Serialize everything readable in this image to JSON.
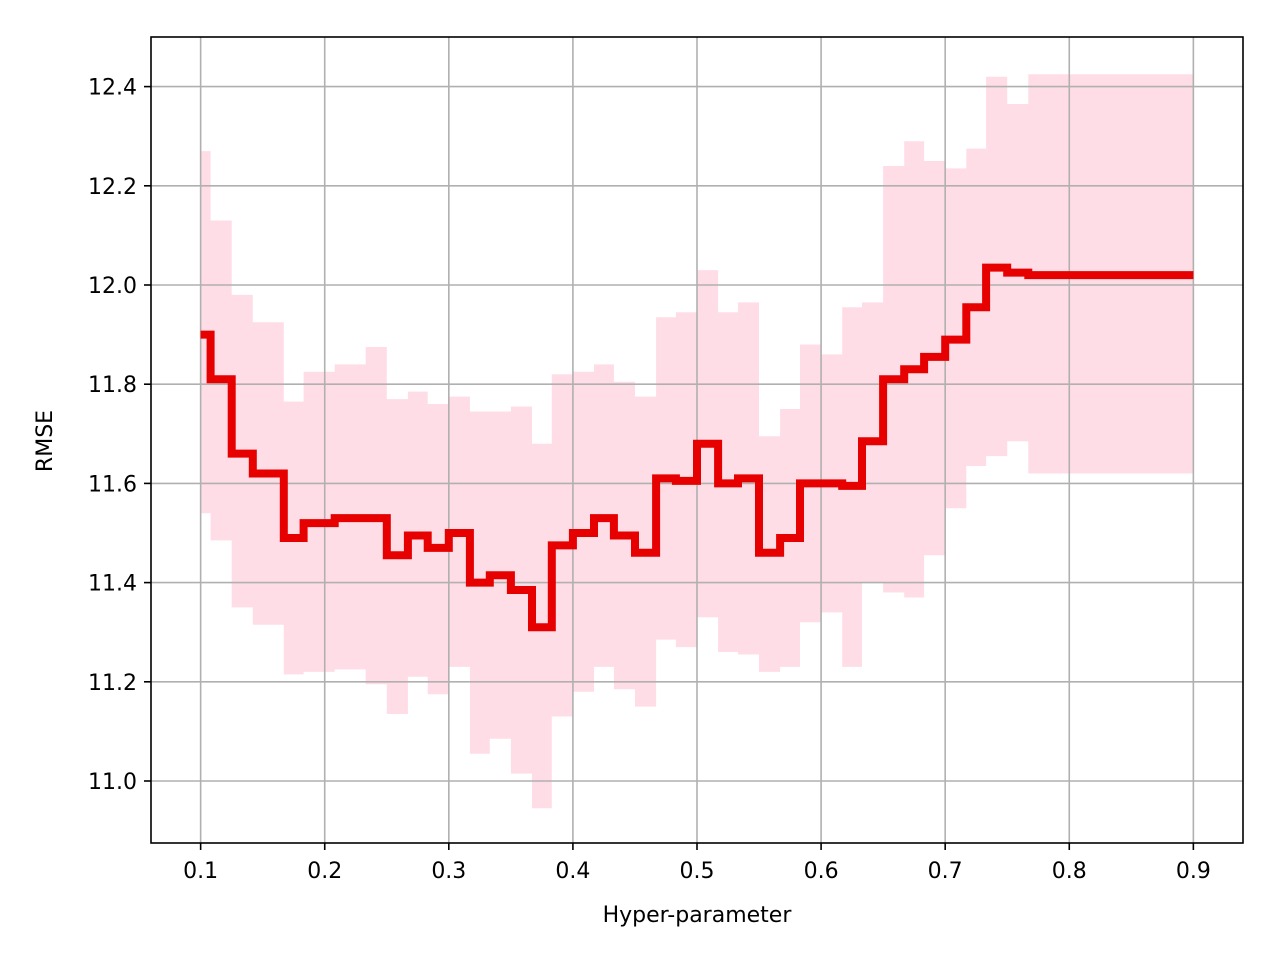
{
  "chart_data": {
    "type": "line",
    "title": "",
    "xlabel": "Hyper-parameter",
    "ylabel": "RMSE",
    "xlim": [
      0.06,
      0.94
    ],
    "ylim": [
      10.875,
      12.5
    ],
    "grid": true,
    "x_ticks": [
      0.1,
      0.2,
      0.3,
      0.4,
      0.5,
      0.6,
      0.7,
      0.8,
      0.9
    ],
    "x_tick_labels": [
      "0.1",
      "0.2",
      "0.3",
      "0.4",
      "0.5",
      "0.6",
      "0.7",
      "0.8",
      "0.9"
    ],
    "y_ticks": [
      11.0,
      11.2,
      11.4,
      11.6,
      11.8,
      12.0,
      12.2,
      12.4
    ],
    "y_tick_labels": [
      "11.0",
      "11.2",
      "11.4",
      "11.6",
      "11.8",
      "12.0",
      "12.2",
      "12.4"
    ],
    "step": true,
    "colors": {
      "line": "#e60000",
      "band": "#ffdde6",
      "grid": "#b0b0b0"
    },
    "series": [
      {
        "x": [
          0.1,
          0.108,
          0.125,
          0.142,
          0.167,
          0.183,
          0.208,
          0.233,
          0.25,
          0.267,
          0.283,
          0.3,
          0.317,
          0.333,
          0.35,
          0.367,
          0.383,
          0.4,
          0.417,
          0.433,
          0.45,
          0.467,
          0.483,
          0.5,
          0.517,
          0.533,
          0.55,
          0.567,
          0.583,
          0.6,
          0.617,
          0.633,
          0.65,
          0.667,
          0.683,
          0.7,
          0.717,
          0.733,
          0.75,
          0.767,
          0.783,
          0.8,
          0.817,
          0.833,
          0.85,
          0.867,
          0.883,
          0.9
        ],
        "y": [
          11.9,
          11.81,
          11.66,
          11.62,
          11.49,
          11.52,
          11.53,
          11.53,
          11.455,
          11.495,
          11.47,
          11.5,
          11.4,
          11.415,
          11.385,
          11.31,
          11.475,
          11.5,
          11.53,
          11.495,
          11.46,
          11.61,
          11.605,
          11.68,
          11.6,
          11.61,
          11.46,
          11.49,
          11.6,
          11.6,
          11.595,
          11.685,
          11.81,
          11.83,
          11.855,
          11.89,
          11.955,
          12.035,
          12.025,
          12.02,
          12.02,
          12.02,
          12.02,
          12.02,
          12.02,
          12.02,
          12.02,
          12.02
        ],
        "upper": [
          12.27,
          12.13,
          11.98,
          11.925,
          11.765,
          11.825,
          11.84,
          11.875,
          11.77,
          11.785,
          11.76,
          11.775,
          11.745,
          11.745,
          11.755,
          11.68,
          11.82,
          11.825,
          11.84,
          11.805,
          11.775,
          11.935,
          11.945,
          12.03,
          11.945,
          11.965,
          11.695,
          11.75,
          11.88,
          11.86,
          11.955,
          11.965,
          12.24,
          12.29,
          12.25,
          12.235,
          12.275,
          12.42,
          12.365,
          12.425,
          12.425,
          12.425,
          12.425,
          12.425,
          12.425,
          12.425,
          12.425,
          12.425
        ],
        "lower": [
          11.54,
          11.485,
          11.35,
          11.315,
          11.215,
          11.22,
          11.225,
          11.195,
          11.135,
          11.21,
          11.175,
          11.23,
          11.055,
          11.085,
          11.015,
          10.945,
          11.13,
          11.18,
          11.23,
          11.185,
          11.15,
          11.285,
          11.27,
          11.33,
          11.26,
          11.255,
          11.22,
          11.23,
          11.32,
          11.34,
          11.23,
          11.4,
          11.38,
          11.37,
          11.455,
          11.55,
          11.635,
          11.655,
          11.685,
          11.62,
          11.62,
          11.62,
          11.62,
          11.62,
          11.62,
          11.62,
          11.62,
          11.62
        ]
      }
    ]
  }
}
